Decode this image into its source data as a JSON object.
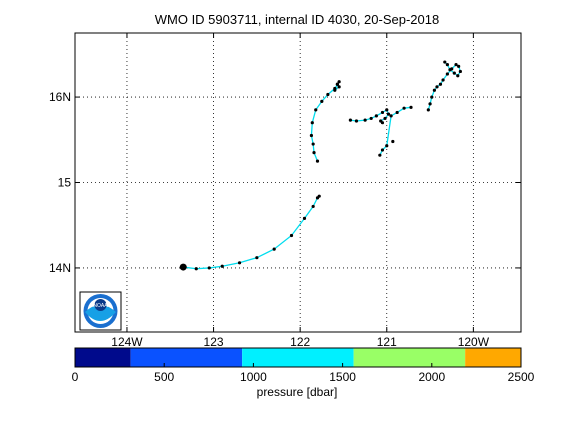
{
  "chart_data": {
    "type": "line",
    "title": "WMO ID 5903711, internal ID 4030, 20-Sep-2018",
    "xlim": [
      -124.6,
      -119.45
    ],
    "ylim": [
      13.25,
      16.75
    ],
    "x_tick_values": [
      -124,
      -123,
      -122,
      -121,
      -120
    ],
    "x_tick_labels": [
      "124W",
      "123",
      "122",
      "121",
      "120W"
    ],
    "y_tick_values": [
      14,
      15,
      16
    ],
    "y_tick_labels": [
      "14N",
      "15",
      "16N"
    ],
    "grid": true,
    "start_point": {
      "lon": -123.35,
      "lat": 14.01
    },
    "track": [
      {
        "name": "drift",
        "lon": [
          -123.35,
          -123.2,
          -123.05,
          -122.9,
          -122.7,
          -122.5,
          -122.3,
          -122.1,
          -121.95,
          -121.85,
          -121.8,
          -121.78
        ],
        "lat": [
          14.01,
          13.99,
          14.0,
          14.02,
          14.06,
          14.12,
          14.22,
          14.38,
          14.58,
          14.72,
          14.82,
          14.84
        ]
      },
      {
        "name": "segment-a",
        "lon": [
          -121.8,
          -121.84,
          -121.85,
          -121.87,
          -121.86,
          -121.82,
          -121.75,
          -121.68,
          -121.6,
          -121.57,
          -121.55,
          -121.6,
          -121.57,
          -121.55
        ],
        "lat": [
          15.25,
          15.35,
          15.45,
          15.55,
          15.7,
          15.85,
          15.95,
          16.03,
          16.1,
          16.15,
          16.12,
          16.08,
          16.15,
          16.18
        ]
      },
      {
        "name": "segment-b",
        "lon": [
          -121.42,
          -121.35,
          -121.25,
          -121.18,
          -121.12,
          -121.05,
          -121.0,
          -120.98,
          -121.02,
          -121.07,
          -121.05
        ],
        "lat": [
          15.73,
          15.72,
          15.73,
          15.75,
          15.78,
          15.82,
          15.85,
          15.8,
          15.75,
          15.72,
          15.7
        ]
      },
      {
        "name": "segment-c",
        "lon": [
          -121.08,
          -121.05,
          -121.0,
          -120.95,
          -120.88,
          -120.8,
          -120.72
        ],
        "lat": [
          15.32,
          15.38,
          15.43,
          15.78,
          15.82,
          15.87,
          15.88
        ]
      },
      {
        "name": "segment-d",
        "lon": [
          -120.52,
          -120.5,
          -120.48,
          -120.45,
          -120.42,
          -120.38,
          -120.35,
          -120.3,
          -120.25,
          -120.2,
          -120.17,
          -120.15,
          -120.18,
          -120.22,
          -120.27,
          -120.3,
          -120.33
        ],
        "lat": [
          15.85,
          15.92,
          16.0,
          16.08,
          16.12,
          16.15,
          16.2,
          16.27,
          16.33,
          16.38,
          16.36,
          16.3,
          16.25,
          16.28,
          16.32,
          16.38,
          16.41
        ]
      }
    ],
    "isolated_points": [
      {
        "lon": -120.93,
        "lat": 15.48
      }
    ],
    "colorbar": {
      "label": "pressure [dbar]",
      "range": [
        0,
        2500
      ],
      "tick_values": [
        0,
        500,
        1000,
        1500,
        2000,
        2500
      ],
      "tick_labels": [
        "0",
        "500",
        "1000",
        "1500",
        "2000",
        "2500"
      ],
      "segments": [
        {
          "from": 0,
          "to": 312,
          "color": "#000a8c"
        },
        {
          "from": 312,
          "to": 937,
          "color": "#0a52ff"
        },
        {
          "from": 937,
          "to": 1562,
          "color": "#00f0ff"
        },
        {
          "from": 1562,
          "to": 2187,
          "color": "#99ff66"
        },
        {
          "from": 2187,
          "to": 2500,
          "color": "#ffa800"
        }
      ]
    },
    "track_color": "#00ddee",
    "marker_color": "#000000"
  },
  "logo": {
    "text": "NOAA"
  }
}
